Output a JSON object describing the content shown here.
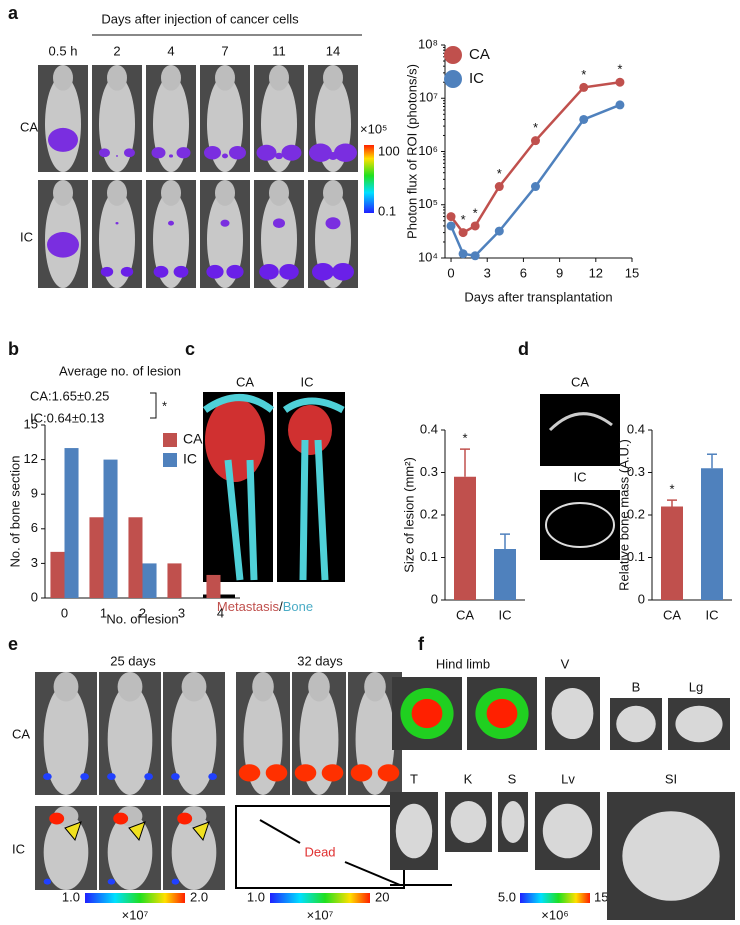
{
  "figure": {
    "panel_labels": [
      "a",
      "b",
      "c",
      "d",
      "e",
      "f"
    ],
    "a": {
      "header": "Days after injection of cancer cells",
      "timepoints": [
        "0.5 h",
        "2",
        "4",
        "7",
        "11",
        "14"
      ],
      "rows": [
        "CA",
        "IC"
      ],
      "colorbar": {
        "unit": "×10⁵",
        "max": "100",
        "min": "0.1"
      }
    },
    "c": {
      "labels": [
        "CA",
        "IC"
      ],
      "legend": [
        "Metastasis",
        "/",
        "Bone"
      ]
    },
    "d": {
      "labels": [
        "CA",
        "IC"
      ]
    },
    "e": {
      "times": [
        "25 days",
        "32 days"
      ],
      "rows": [
        "CA",
        "IC"
      ],
      "dead": "Dead",
      "colorbars": [
        {
          "min": "1.0",
          "max": "2.0",
          "unit": "×10⁷"
        },
        {
          "min": "1.0",
          "max": "20",
          "unit": "×10⁷"
        }
      ]
    },
    "f": {
      "organs": [
        "Hind limb",
        "V",
        "B",
        "Lg",
        "T",
        "K",
        "S",
        "Lv",
        "SI"
      ],
      "colorbar": {
        "min": "5.0",
        "max": "15",
        "unit": "×10⁶"
      }
    }
  },
  "chart_data": [
    {
      "type": "line",
      "x_label": "Days after transplantation",
      "y_label": "Photon flux of ROI (photons/s)",
      "x": [
        0,
        1,
        2,
        4,
        7,
        11,
        14
      ],
      "series": [
        {
          "name": "CA",
          "color": "#c0504d",
          "values": [
            60000,
            30000,
            40000,
            220000,
            1600000,
            16000000,
            20000000
          ]
        },
        {
          "name": "IC",
          "color": "#4f81bd",
          "values": [
            40000,
            12000,
            11000,
            32000,
            220000,
            4000000,
            7500000
          ]
        }
      ],
      "log_scale": true,
      "xlim": [
        -0.5,
        15
      ],
      "xticks": [
        0,
        3,
        6,
        9,
        12,
        15
      ],
      "ylim": [
        10000,
        100000000
      ],
      "yticks": [
        {
          "value": 10000,
          "label": "10⁴"
        },
        {
          "value": 100000,
          "label": "10⁵"
        },
        {
          "value": 1000000,
          "label": "10⁶"
        },
        {
          "value": 10000000,
          "label": "10⁷"
        },
        {
          "value": 100000000,
          "label": "10⁸"
        }
      ],
      "annotations": [
        {
          "text": "*",
          "x": 1
        },
        {
          "text": "*",
          "x": 2
        },
        {
          "text": "*",
          "x": 4
        },
        {
          "text": "*",
          "x": 7
        },
        {
          "text": "*",
          "x": 11
        },
        {
          "text": "*",
          "x": 14
        }
      ]
    },
    {
      "type": "bar",
      "title": "Average no. of lesion",
      "stats": [
        "CA:1.65±0.25",
        "IC:0.64±0.13"
      ],
      "stats_marker": "*",
      "x_label": "No. of lesion",
      "y_label": "No. of bone section",
      "categories": [
        "0",
        "1",
        "2",
        "3",
        "4"
      ],
      "series": [
        {
          "name": "CA",
          "color": "#c0504d",
          "values": [
            4,
            7,
            7,
            3,
            2
          ]
        },
        {
          "name": "IC",
          "color": "#4f81bd",
          "values": [
            13,
            12,
            3,
            0,
            0
          ]
        }
      ],
      "ylim": [
        0,
        15
      ],
      "yticks": [
        0,
        3,
        6,
        9,
        12,
        15
      ]
    },
    {
      "type": "bar",
      "y_label": "Size of lesion (mm²)",
      "categories": [
        "CA",
        "IC"
      ],
      "series": [
        {
          "colors": [
            "#c0504d",
            "#4f81bd"
          ],
          "values": [
            0.29,
            0.12
          ],
          "errors": [
            0.065,
            0.035
          ]
        }
      ],
      "ylim": [
        0,
        0.4
      ],
      "yticks": [
        0,
        0.1,
        0.2,
        0.3,
        0.4
      ],
      "annotations": [
        {
          "text": "*",
          "x": "CA"
        }
      ]
    },
    {
      "type": "bar",
      "y_label": "Relative bone mass (A.U.)",
      "categories": [
        "CA",
        "IC"
      ],
      "series": [
        {
          "colors": [
            "#c0504d",
            "#4f81bd"
          ],
          "values": [
            0.22,
            0.31
          ],
          "errors": [
            0.015,
            0.033
          ]
        }
      ],
      "ylim": [
        0,
        0.4
      ],
      "yticks": [
        0,
        0.1,
        0.2,
        0.3,
        0.4
      ],
      "annotations": [
        {
          "text": "*",
          "x": "CA"
        }
      ]
    }
  ]
}
